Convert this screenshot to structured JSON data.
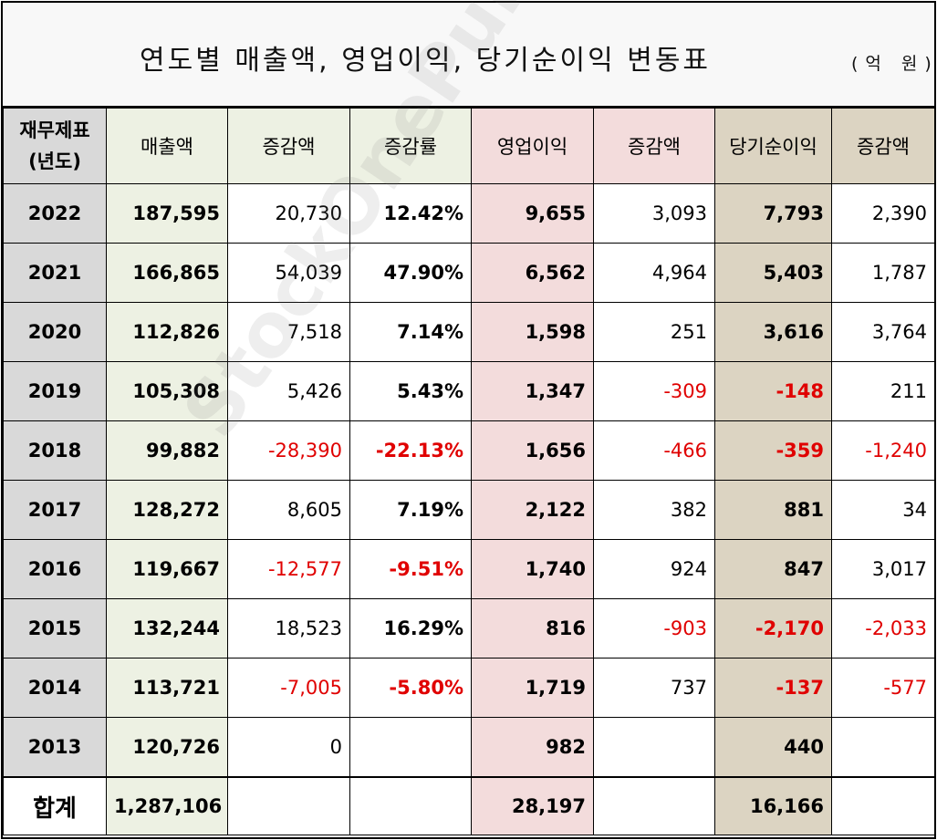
{
  "title": "연도별 매출액, 영업이익, 당기순이익 변동표",
  "unit": "(억 원)",
  "watermark": "StockOnePunch",
  "headers": {
    "year_line1": "재무제표",
    "year_line2": "(년도)",
    "revenue": "매출액",
    "revenue_change": "증감액",
    "revenue_rate": "증감률",
    "op_income": "영업이익",
    "op_change": "증감액",
    "net_income": "당기순이익",
    "net_change": "증감액"
  },
  "rows": [
    {
      "year": "2022",
      "revenue": "187,595",
      "rev_chg": "20,730",
      "rev_rate": "12.42%",
      "op": "9,655",
      "op_chg": "3,093",
      "net": "7,793",
      "net_chg": "2,390"
    },
    {
      "year": "2021",
      "revenue": "166,865",
      "rev_chg": "54,039",
      "rev_rate": "47.90%",
      "op": "6,562",
      "op_chg": "4,964",
      "net": "5,403",
      "net_chg": "1,787"
    },
    {
      "year": "2020",
      "revenue": "112,826",
      "rev_chg": "7,518",
      "rev_rate": "7.14%",
      "op": "1,598",
      "op_chg": "251",
      "net": "3,616",
      "net_chg": "3,764"
    },
    {
      "year": "2019",
      "revenue": "105,308",
      "rev_chg": "5,426",
      "rev_rate": "5.43%",
      "op": "1,347",
      "op_chg": "-309",
      "net": "-148",
      "net_chg": "211"
    },
    {
      "year": "2018",
      "revenue": "99,882",
      "rev_chg": "-28,390",
      "rev_rate": "-22.13%",
      "op": "1,656",
      "op_chg": "-466",
      "net": "-359",
      "net_chg": "-1,240"
    },
    {
      "year": "2017",
      "revenue": "128,272",
      "rev_chg": "8,605",
      "rev_rate": "7.19%",
      "op": "2,122",
      "op_chg": "382",
      "net": "881",
      "net_chg": "34"
    },
    {
      "year": "2016",
      "revenue": "119,667",
      "rev_chg": "-12,577",
      "rev_rate": "-9.51%",
      "op": "1,740",
      "op_chg": "924",
      "net": "847",
      "net_chg": "3,017"
    },
    {
      "year": "2015",
      "revenue": "132,244",
      "rev_chg": "18,523",
      "rev_rate": "16.29%",
      "op": "816",
      "op_chg": "-903",
      "net": "-2,170",
      "net_chg": "-2,033"
    },
    {
      "year": "2014",
      "revenue": "113,721",
      "rev_chg": "-7,005",
      "rev_rate": "-5.80%",
      "op": "1,719",
      "op_chg": "737",
      "net": "-137",
      "net_chg": "-577"
    },
    {
      "year": "2013",
      "revenue": "120,726",
      "rev_chg": "0",
      "rev_rate": "",
      "op": "982",
      "op_chg": "",
      "net": "440",
      "net_chg": ""
    }
  ],
  "total": {
    "label": "합계",
    "revenue": "1,287,106",
    "op": "28,197",
    "net": "16,166"
  },
  "colors": {
    "revenue_bg": "#edf1e3",
    "op_bg": "#f3dcdc",
    "net_bg": "#dcd4c2",
    "year_bg": "#d9d9d9",
    "negative": "#e00000"
  }
}
